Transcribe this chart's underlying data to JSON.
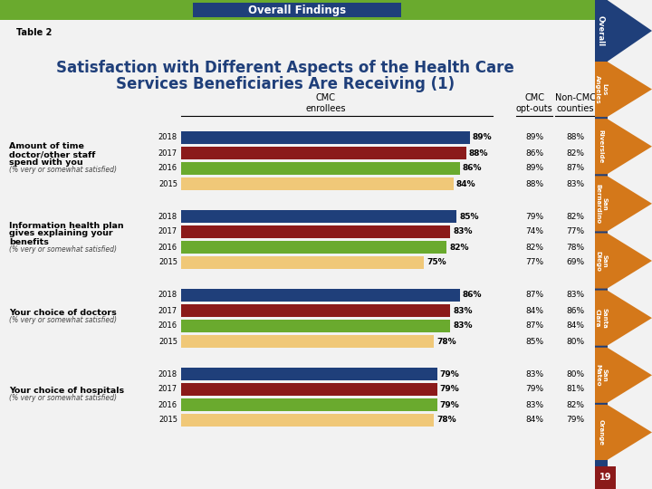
{
  "title": "Overall Findings",
  "table_label": "Table 2",
  "main_title_line1": "Satisfaction with Different Aspects of the Health Care",
  "main_title_line2": "Services Beneficiaries Are Receiving (1)",
  "col_header_cmc": "CMC\nenrollees",
  "col_header_optouts": "CMC\nopt-outs",
  "col_header_noncmc": "Non-CMC\ncounties",
  "bar_colors": [
    "#1f3f7a",
    "#8b1a1a",
    "#6aaa2e",
    "#f0c878"
  ],
  "years": [
    "2018",
    "2017",
    "2016",
    "2015"
  ],
  "sections": [
    {
      "label_bold": "Amount of time\ndoctor/other staff\nspend with you",
      "label_small": "(% very or somewhat satisfied)",
      "cmc_values": [
        89,
        88,
        86,
        84
      ],
      "optout_values": [
        "89%",
        "86%",
        "89%",
        "88%"
      ],
      "noncmc_values": [
        "88%",
        "82%",
        "87%",
        "83%"
      ]
    },
    {
      "label_bold": "Information health plan\ngives explaining your\nbenefits",
      "label_small": "(% very or somewhat satisfied)",
      "cmc_values": [
        85,
        83,
        82,
        75
      ],
      "optout_values": [
        "79%",
        "74%",
        "82%",
        "77%"
      ],
      "noncmc_values": [
        "82%",
        "77%",
        "78%",
        "69%"
      ]
    },
    {
      "label_bold": "Your choice of doctors",
      "label_small": "(% very or somewhat satisfied)",
      "cmc_values": [
        86,
        83,
        83,
        78
      ],
      "optout_values": [
        "87%",
        "84%",
        "87%",
        "85%"
      ],
      "noncmc_values": [
        "83%",
        "86%",
        "84%",
        "80%"
      ]
    },
    {
      "label_bold": "Your choice of hospitals",
      "label_small": "(% very or somewhat satisfied)",
      "cmc_values": [
        79,
        79,
        79,
        78
      ],
      "optout_values": [
        "83%",
        "79%",
        "83%",
        "84%"
      ],
      "noncmc_values": [
        "80%",
        "81%",
        "82%",
        "79%"
      ]
    }
  ],
  "sidebar_labels": [
    "Overall",
    "Los\nAngeles",
    "Riverside",
    "San\nBernardino",
    "San\nDiego",
    "Santa\nClara",
    "San\nMateo",
    "Orange"
  ],
  "sidebar_blue": "#1f3f7a",
  "sidebar_orange": "#d4781a",
  "footer_color": "#8b1a1a",
  "footer_text": "19",
  "bg_color": "#f0f0f0",
  "title_bg_color": "#1f3f7a",
  "title_text_color": "#ffffff",
  "main_title_color": "#1f3f7a",
  "top_bar_green": "#6aaa2e",
  "content_bg": "#f2f2f2"
}
